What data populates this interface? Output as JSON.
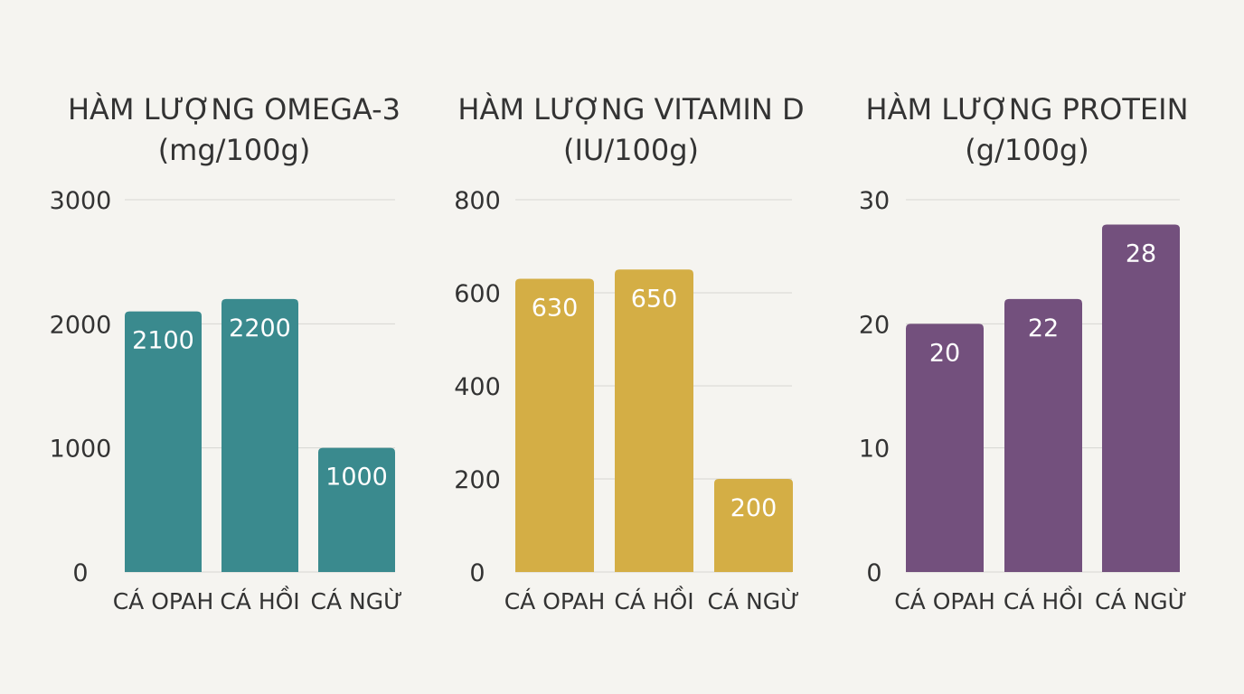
{
  "chart_data": [
    {
      "type": "bar",
      "title": "HÀM LƯỢNG OMEGA-3",
      "subtitle": "(mg/100g)",
      "categories": [
        "CÁ OPAH",
        "CÁ HỒI",
        "CÁ NGỪ"
      ],
      "values": [
        2100,
        2200,
        1000
      ],
      "data_labels": [
        "2100",
        "2200",
        "1000"
      ],
      "yticks": [
        "0",
        "1000",
        "2000",
        "3000"
      ],
      "ylim": [
        0,
        3000
      ],
      "grid": true,
      "color": "#3a8a8e"
    },
    {
      "type": "bar",
      "title": "HÀM LƯỢNG VITAMIN D",
      "subtitle": "(IU/100g)",
      "categories": [
        "CÁ OPAH",
        "CÁ HỒI",
        "CÁ NGỪ"
      ],
      "values": [
        630,
        650,
        200
      ],
      "data_labels": [
        "630",
        "650",
        "200"
      ],
      "yticks": [
        "0",
        "200",
        "400",
        "600",
        "800"
      ],
      "ylim": [
        0,
        800
      ],
      "grid": true,
      "color": "#d4ae45"
    },
    {
      "type": "bar",
      "title": "HÀM LƯỢNG PROTEIN",
      "subtitle": "(g/100g)",
      "categories": [
        "CÁ OPAH",
        "CÁ HỒI",
        "CÁ NGỪ"
      ],
      "values": [
        20,
        22,
        28
      ],
      "data_labels": [
        "20",
        "22",
        "28"
      ],
      "yticks": [
        "0",
        "10",
        "20",
        "30"
      ],
      "ylim": [
        0,
        30
      ],
      "grid": true,
      "color": "#73507d"
    }
  ]
}
